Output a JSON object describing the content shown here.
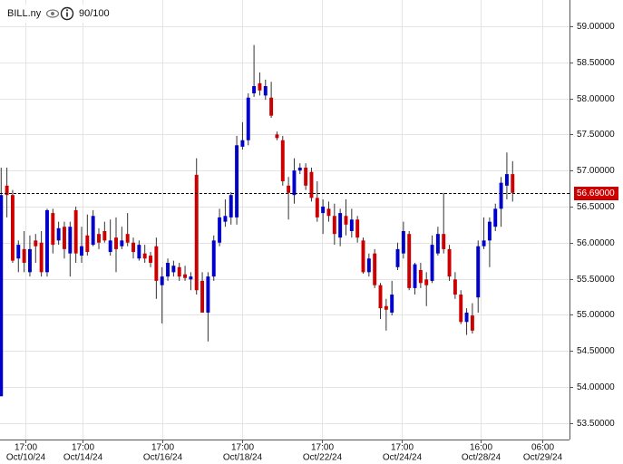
{
  "chart_data": {
    "type": "candlestick",
    "title": "BILL.ny",
    "rating": "90/100",
    "up_color": "#0000cc",
    "down_color": "#cc0000",
    "grid": true,
    "ylim": [
      53.27,
      59.364
    ],
    "yticks": [
      {
        "value": 59.0,
        "label": "59.00000"
      },
      {
        "value": 58.5,
        "label": "58.50000"
      },
      {
        "value": 58.0,
        "label": "58.00000"
      },
      {
        "value": 57.5,
        "label": "57.50000"
      },
      {
        "value": 57.0,
        "label": "57.00000"
      },
      {
        "value": 56.5,
        "label": "56.50000"
      },
      {
        "value": 56.0,
        "label": "56.00000"
      },
      {
        "value": 55.5,
        "label": "55.50000"
      },
      {
        "value": 55.0,
        "label": "55.00000"
      },
      {
        "value": 54.5,
        "label": "54.50000"
      },
      {
        "value": 54.0,
        "label": "54.00000"
      },
      {
        "value": 53.5,
        "label": "53.50000"
      }
    ],
    "xlim": [
      -0.2,
      98.9
    ],
    "xticks": [
      {
        "value": 4.2,
        "time": "17:00",
        "date": "Oct/10/24"
      },
      {
        "value": 14.1,
        "time": "17:00",
        "date": "Oct/14/24"
      },
      {
        "value": 28.0,
        "time": "17:00",
        "date": "Oct/16/24"
      },
      {
        "value": 41.9,
        "time": "17:00",
        "date": "Oct/18/24"
      },
      {
        "value": 55.8,
        "time": "17:00",
        "date": "Oct/22/24"
      },
      {
        "value": 69.7,
        "time": "17:00",
        "date": "Oct/24/24"
      },
      {
        "value": 83.5,
        "time": "16:00",
        "date": "Oct/28/24"
      },
      {
        "value": 94.1,
        "time": "06:00",
        "date": "Oct/29/24"
      }
    ],
    "price_line": {
      "value": 56.69,
      "label": "56.69000"
    },
    "open": [
      53.87,
      56.79,
      56.66,
      55.78,
      55.91,
      55.59,
      56.03,
      56.0,
      55.59,
      56.41,
      56.03,
      56.22,
      55.85,
      56.45,
      55.82,
      56.1,
      55.97,
      56.12,
      56.16,
      55.87,
      56.07,
      55.95,
      56.12,
      56.0,
      55.78,
      55.85,
      55.82,
      55.95,
      55.41,
      55.53,
      55.59,
      55.66,
      55.56,
      55.49,
      56.94,
      55.47,
      55.03,
      55.53,
      56.0,
      56.29,
      56.35,
      56.35,
      57.33,
      57.42,
      58.07,
      58.21,
      58.04,
      58.01,
      57.5,
      57.42,
      56.79,
      56.66,
      57.0,
      57.04,
      56.98,
      56.62,
      56.41,
      56.47,
      56.37,
      56.07,
      56.37,
      56.16,
      56.32,
      56.03,
      55.59,
      55.85,
      55.41,
      55.12,
      55.03,
      55.66,
      55.85,
      56.12,
      55.37,
      55.62,
      55.49,
      55.47,
      55.85,
      56.12,
      55.91,
      55.49,
      55.28,
      54.9,
      54.99,
      55.24,
      55.95,
      56.03,
      56.22,
      56.47,
      56.79,
      56.95
    ],
    "high": [
      57.04,
      57.04,
      56.73,
      56.03,
      56.16,
      56.1,
      56.12,
      56.16,
      56.47,
      56.47,
      56.29,
      56.29,
      56.29,
      56.5,
      56.22,
      56.39,
      56.45,
      56.2,
      56.29,
      56.32,
      56.35,
      56.22,
      56.41,
      56.07,
      56.03,
      55.97,
      55.87,
      56.07,
      55.66,
      55.78,
      55.75,
      55.72,
      55.68,
      55.59,
      57.17,
      55.59,
      55.59,
      56.1,
      56.47,
      56.6,
      56.7,
      57.48,
      57.67,
      58.07,
      58.74,
      58.36,
      58.26,
      58.23,
      57.54,
      57.48,
      56.91,
      57.17,
      57.1,
      57.1,
      57.04,
      56.85,
      56.6,
      56.57,
      56.54,
      56.47,
      56.6,
      56.47,
      56.37,
      56.07,
      55.85,
      55.91,
      55.44,
      55.22,
      55.47,
      56.0,
      56.29,
      56.16,
      55.72,
      55.72,
      55.59,
      56.1,
      56.22,
      56.69,
      55.97,
      55.59,
      55.34,
      55.09,
      55.16,
      56.03,
      56.35,
      56.35,
      56.54,
      56.91,
      57.25,
      57.13
    ],
    "low": [
      53.87,
      56.35,
      55.72,
      55.59,
      55.59,
      55.53,
      55.72,
      55.53,
      55.53,
      55.85,
      55.97,
      55.78,
      55.53,
      55.72,
      55.72,
      55.82,
      55.95,
      55.91,
      56.0,
      55.82,
      55.59,
      55.91,
      55.95,
      55.78,
      55.75,
      55.72,
      55.66,
      55.22,
      54.88,
      55.47,
      55.53,
      55.47,
      55.47,
      55.34,
      55.28,
      55.03,
      54.63,
      55.47,
      55.95,
      56.22,
      56.25,
      56.25,
      57.29,
      57.35,
      58.02,
      58.04,
      57.98,
      57.73,
      57.42,
      56.79,
      56.32,
      56.54,
      56.95,
      56.73,
      56.57,
      56.29,
      56.12,
      56.29,
      55.97,
      55.95,
      56.1,
      56.07,
      56.0,
      55.57,
      55.53,
      55.37,
      54.94,
      54.78,
      54.99,
      55.62,
      55.78,
      55.34,
      55.28,
      55.37,
      55.12,
      55.44,
      55.82,
      55.85,
      55.47,
      55.22,
      54.87,
      54.72,
      54.74,
      55.03,
      55.91,
      55.66,
      56.16,
      56.22,
      56.6,
      56.57
    ],
    "close": [
      56.66,
      56.66,
      55.75,
      55.97,
      55.72,
      55.91,
      55.95,
      55.59,
      56.45,
      55.97,
      56.2,
      55.91,
      56.22,
      55.85,
      55.95,
      55.87,
      56.37,
      56.0,
      56.03,
      56.03,
      55.91,
      56.03,
      56.0,
      55.87,
      55.97,
      55.78,
      55.72,
      55.47,
      55.53,
      55.72,
      55.68,
      55.53,
      55.51,
      55.53,
      55.34,
      55.03,
      55.53,
      56.03,
      56.35,
      56.37,
      56.66,
      57.35,
      57.42,
      58.01,
      58.17,
      58.11,
      58.17,
      57.76,
      57.45,
      56.85,
      56.69,
      57.0,
      57.04,
      56.79,
      56.62,
      56.35,
      56.5,
      56.37,
      56.12,
      56.41,
      56.25,
      56.32,
      56.07,
      55.59,
      55.78,
      55.41,
      55.09,
      55.07,
      55.28,
      55.91,
      56.16,
      55.37,
      55.7,
      55.44,
      55.41,
      55.97,
      56.12,
      55.91,
      55.53,
      55.28,
      54.9,
      55.03,
      54.78,
      55.95,
      56.03,
      56.29,
      56.47,
      56.83,
      56.95,
      56.69
    ]
  }
}
